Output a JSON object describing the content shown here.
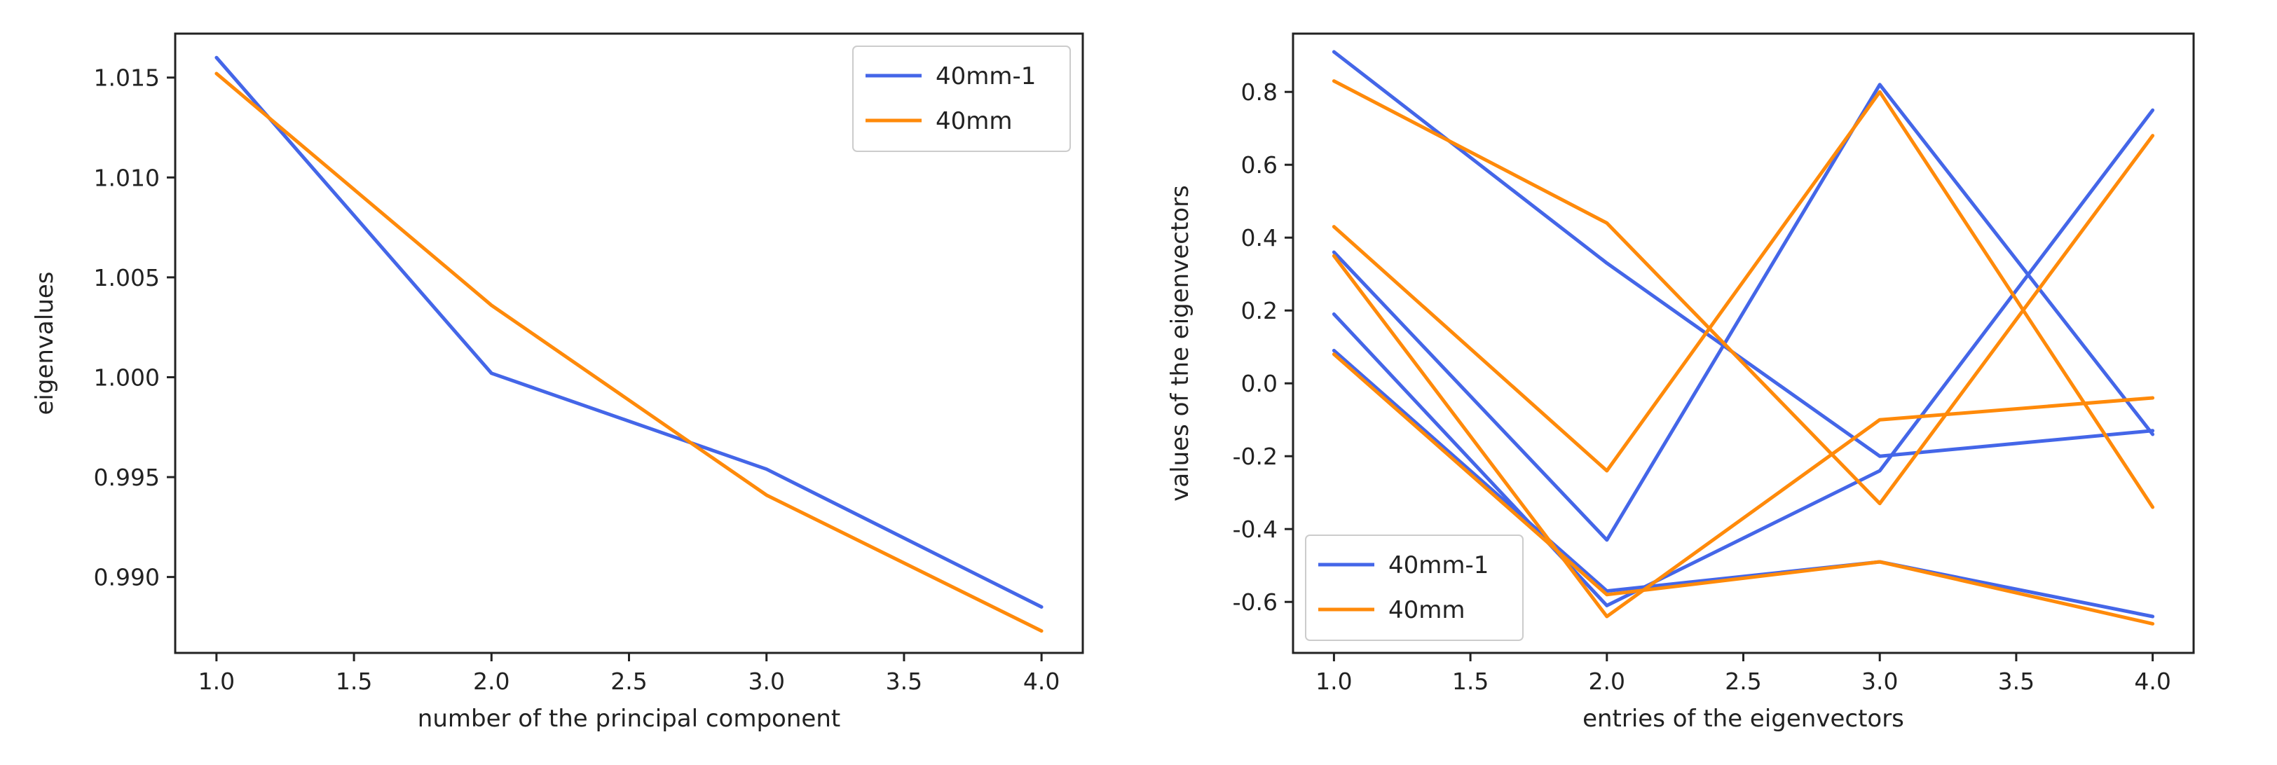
{
  "colors": {
    "series_a": "#4466e8",
    "series_b": "#ff8a0a",
    "axis": "#222222"
  },
  "chart_data": [
    {
      "type": "line",
      "title": "",
      "xlabel": "number of the principal component",
      "ylabel": "eigenvalues",
      "xlim": [
        0.85,
        4.15
      ],
      "ylim": [
        0.9862,
        1.0172
      ],
      "xticks": [
        1.0,
        1.5,
        2.0,
        2.5,
        3.0,
        3.5,
        4.0
      ],
      "xtick_labels": [
        "1.0",
        "1.5",
        "2.0",
        "2.5",
        "3.0",
        "3.5",
        "4.0"
      ],
      "yticks": [
        0.99,
        0.995,
        1.0,
        1.005,
        1.01,
        1.015
      ],
      "ytick_labels": [
        "0.990",
        "0.995",
        "1.000",
        "1.005",
        "1.010",
        "1.015"
      ],
      "legend": "top-right",
      "legend_entries": [
        "40mm-1",
        "40mm"
      ],
      "series": [
        {
          "name": "40mm-1",
          "color": "#4466e8",
          "lines": [
            {
              "x": [
                1,
                2,
                3,
                4
              ],
              "y": [
                1.016,
                1.0002,
                0.9954,
                0.9885
              ]
            }
          ]
        },
        {
          "name": "40mm",
          "color": "#ff8a0a",
          "lines": [
            {
              "x": [
                1,
                2,
                3,
                4
              ],
              "y": [
                1.0152,
                1.0036,
                0.9941,
                0.9873
              ]
            }
          ]
        }
      ]
    },
    {
      "type": "line",
      "title": "",
      "xlabel": "entries of the eigenvectors",
      "ylabel": "values of the eigenvectors",
      "xlim": [
        0.85,
        4.15
      ],
      "ylim": [
        -0.74,
        0.96
      ],
      "xticks": [
        1.0,
        1.5,
        2.0,
        2.5,
        3.0,
        3.5,
        4.0
      ],
      "xtick_labels": [
        "1.0",
        "1.5",
        "2.0",
        "2.5",
        "3.0",
        "3.5",
        "4.0"
      ],
      "yticks": [
        -0.6,
        -0.4,
        -0.2,
        0.0,
        0.2,
        0.4,
        0.6,
        0.8
      ],
      "ytick_labels": [
        "-0.6",
        "-0.4",
        "-0.2",
        "0.0",
        "0.2",
        "0.4",
        "0.6",
        "0.8"
      ],
      "legend": "bottom-left",
      "legend_entries": [
        "40mm-1",
        "40mm"
      ],
      "series": [
        {
          "name": "40mm-1",
          "color": "#4466e8",
          "lines": [
            {
              "x": [
                1,
                2,
                3,
                4
              ],
              "y": [
                0.91,
                0.33,
                -0.2,
                -0.13
              ]
            },
            {
              "x": [
                1,
                2,
                3,
                4
              ],
              "y": [
                0.36,
                -0.43,
                0.82,
                -0.14
              ]
            },
            {
              "x": [
                1,
                2,
                3,
                4
              ],
              "y": [
                0.19,
                -0.61,
                -0.24,
                0.75
              ]
            },
            {
              "x": [
                1,
                2,
                3,
                4
              ],
              "y": [
                0.09,
                -0.57,
                -0.49,
                -0.64
              ]
            }
          ]
        },
        {
          "name": "40mm",
          "color": "#ff8a0a",
          "lines": [
            {
              "x": [
                1,
                2,
                3,
                4
              ],
              "y": [
                0.83,
                0.44,
                -0.33,
                0.68
              ]
            },
            {
              "x": [
                1,
                2,
                3,
                4
              ],
              "y": [
                0.43,
                -0.24,
                0.8,
                -0.34
              ]
            },
            {
              "x": [
                1,
                2,
                3,
                4
              ],
              "y": [
                0.35,
                -0.64,
                -0.1,
                -0.04
              ]
            },
            {
              "x": [
                1,
                2,
                3,
                4
              ],
              "y": [
                0.08,
                -0.58,
                -0.49,
                -0.66
              ]
            }
          ]
        }
      ]
    }
  ]
}
